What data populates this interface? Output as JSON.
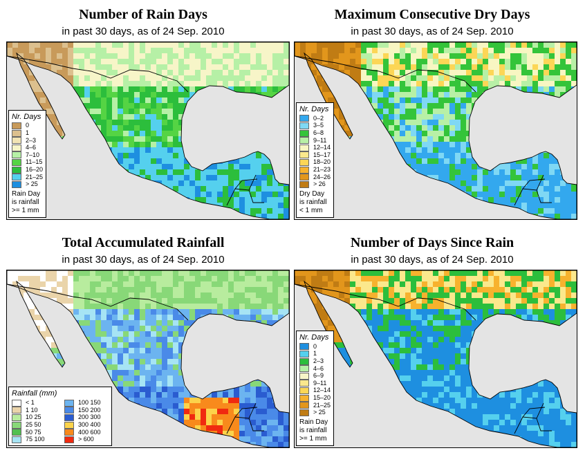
{
  "panels": [
    {
      "title": "Number of Rain Days",
      "subtitle": "in past 30 days, as of  24 Sep. 2010",
      "legend_title": "Nr. Days",
      "note": "Rain Day\nis rainfall\n>= 1 mm",
      "legend": [
        {
          "label": "0",
          "color": "#c89a5a"
        },
        {
          "label": "1",
          "color": "#dcc08e"
        },
        {
          "label": "2–3",
          "color": "#f2e4b4"
        },
        {
          "label": "4–6",
          "color": "#f7f5c8"
        },
        {
          "label": "7–10",
          "color": "#b6f0a6"
        },
        {
          "label": "11–15",
          "color": "#55d444"
        },
        {
          "label": "16–20",
          "color": "#2cbe3c"
        },
        {
          "label": "21–25",
          "color": "#55d0ee"
        },
        {
          "label": "> 25",
          "color": "#1e8fe0"
        }
      ]
    },
    {
      "title": "Maximum Consecutive Dry Days",
      "subtitle": "in past 30 days, as of  24 Sep. 2010",
      "legend_title": "Nr. Days",
      "note": "Dry Day\nis rainfall\n< 1 mm",
      "legend": [
        {
          "label": "0–2",
          "color": "#33a8ee"
        },
        {
          "label": "3–5",
          "color": "#7fd8f4"
        },
        {
          "label": "6–8",
          "color": "#34c43a"
        },
        {
          "label": "9–11",
          "color": "#b8f0a6"
        },
        {
          "label": "12–14",
          "color": "#f8f6c2"
        },
        {
          "label": "15–17",
          "color": "#fbe88c"
        },
        {
          "label": "18–20",
          "color": "#fcd656"
        },
        {
          "label": "21–23",
          "color": "#f7b22e"
        },
        {
          "label": "24–26",
          "color": "#e2961c"
        },
        {
          "label": "> 26",
          "color": "#c07c14"
        }
      ]
    },
    {
      "title": "Total Accumulated Rainfall",
      "subtitle": "in past 30 days, as of  24 Sep. 2010",
      "legend_title": "Rainfall (mm)",
      "note": "",
      "legend": [
        {
          "label": "< 1",
          "color": "#ffffff"
        },
        {
          "label": "1   10",
          "color": "#ead4aa"
        },
        {
          "label": "10   25",
          "color": "#b8ec9e"
        },
        {
          "label": "25   50",
          "color": "#88d878"
        },
        {
          "label": "50   75",
          "color": "#52c050"
        },
        {
          "label": "75   100",
          "color": "#a6e4f4"
        },
        {
          "label": "100   150",
          "color": "#6cb4f0"
        },
        {
          "label": "150   200",
          "color": "#4a8ae8"
        },
        {
          "label": "200   300",
          "color": "#2a5cd0"
        },
        {
          "label": "300   400",
          "color": "#fcd34a"
        },
        {
          "label": "400   600",
          "color": "#f88a1c"
        },
        {
          "label": "> 600",
          "color": "#f02a10"
        }
      ]
    },
    {
      "title": "Number of Days Since Rain",
      "subtitle": "in past 30 days, as of  24 Sep. 2010",
      "legend_title": "Nr. Days",
      "note": "Rain Day\nis rainfall\n>= 1 mm",
      "legend": [
        {
          "label": "0",
          "color": "#1e8fe0"
        },
        {
          "label": "1",
          "color": "#55d0ee"
        },
        {
          "label": "2–3",
          "color": "#2cbe3c"
        },
        {
          "label": "4–6",
          "color": "#b6f0a6"
        },
        {
          "label": "6–9",
          "color": "#f7f5c8"
        },
        {
          "label": "9–11",
          "color": "#fbe88c"
        },
        {
          "label": "12–14",
          "color": "#fcd656"
        },
        {
          "label": "15–20",
          "color": "#f7b22e"
        },
        {
          "label": "21–25",
          "color": "#e2961c"
        },
        {
          "label": "> 25",
          "color": "#c07c14"
        }
      ]
    }
  ]
}
